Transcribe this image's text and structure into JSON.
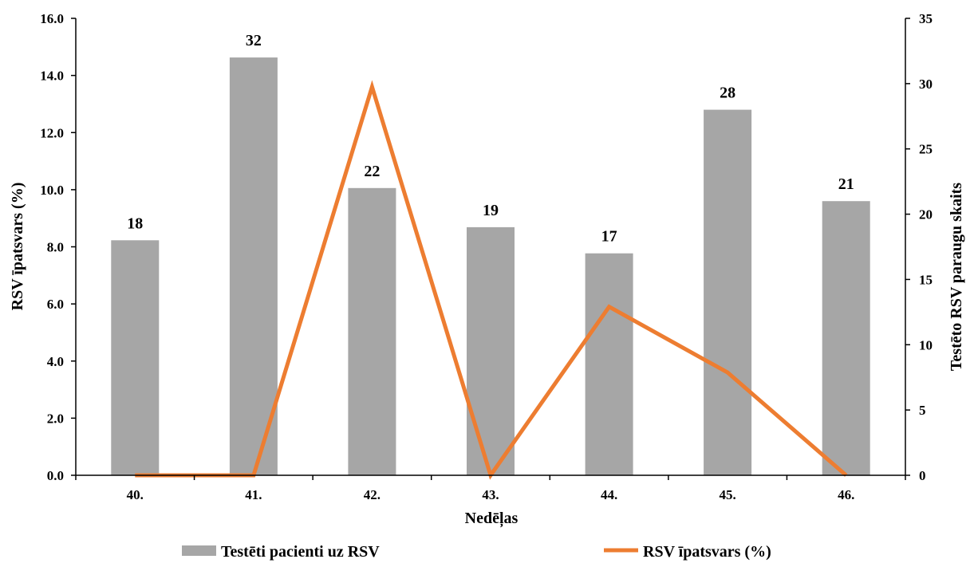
{
  "chart_data": {
    "type": "bar",
    "categories": [
      "40.",
      "41.",
      "42.",
      "43.",
      "44.",
      "45.",
      "46."
    ],
    "xlabel": "Nedēļas",
    "ylabel_left": "RSV īpatsvars (%)",
    "ylabel_right": "Testēto RSV paraugu skaits",
    "ylim_left": [
      0,
      16
    ],
    "ylim_right": [
      0,
      35
    ],
    "yticks_left": [
      "0.0",
      "2.0",
      "4.0",
      "6.0",
      "8.0",
      "10.0",
      "12.0",
      "14.0",
      "16.0"
    ],
    "yticks_right": [
      "0",
      "5",
      "10",
      "15",
      "20",
      "25",
      "30",
      "35"
    ],
    "grid": false,
    "legend_position": "bottom",
    "series": [
      {
        "name": "Testēti pacienti uz RSV",
        "type": "bar",
        "axis": "right",
        "color": "#a6a6a6",
        "values": [
          18,
          32,
          22,
          19,
          17,
          28,
          21
        ],
        "labels": [
          "18",
          "32",
          "22",
          "19",
          "17",
          "28",
          "21"
        ]
      },
      {
        "name": "RSV īpatsvars (%)",
        "type": "line",
        "axis": "left",
        "color": "#ed7d31",
        "values": [
          0.0,
          0.0,
          13.6,
          0.0,
          5.9,
          3.6,
          0.0
        ]
      }
    ]
  }
}
